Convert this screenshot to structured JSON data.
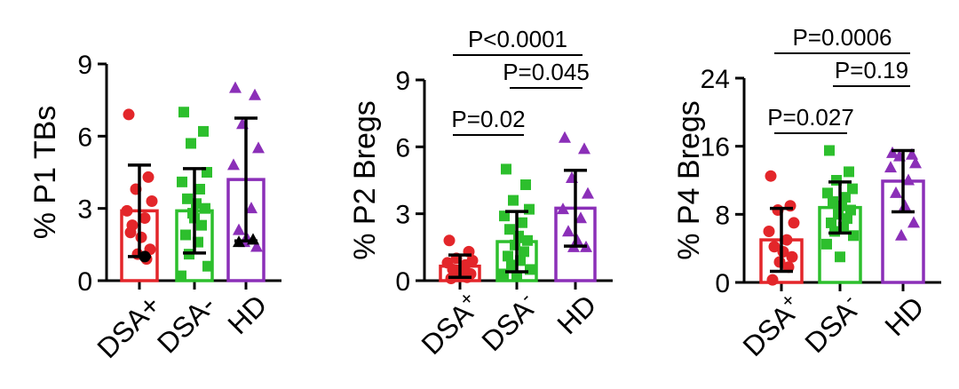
{
  "chart_data": [
    {
      "type": "bar",
      "ylabel": "% P1 TBs",
      "ylim": [
        0,
        9
      ],
      "yticks": [
        "0",
        "3",
        "6",
        "9"
      ],
      "tickvals": [
        0,
        3,
        6,
        9
      ],
      "categories": [
        {
          "main": "DSA+",
          "sup": ""
        },
        {
          "main": "DSA-",
          "sup": ""
        },
        {
          "main": "HD",
          "sup": ""
        }
      ],
      "bars": [
        {
          "mean": 2.9,
          "sd": 1.9,
          "color": "#e3262a",
          "marker": "circle",
          "points": [
            6.9,
            4.3,
            3.8,
            3.3,
            2.9,
            2.6,
            2.3,
            1.8,
            1.3,
            1.1,
            0.9,
            2.0
          ]
        },
        {
          "mean": 2.9,
          "sd": 1.75,
          "color": "#2dbf2d",
          "marker": "square",
          "points": [
            7.0,
            6.2,
            5.7,
            4.5,
            4.1,
            3.8,
            3.4,
            3.2,
            3.0,
            2.8,
            2.3,
            1.9,
            1.6,
            1.1,
            0.6,
            0.2,
            2.6
          ]
        },
        {
          "mean": 4.2,
          "sd": 2.55,
          "color": "#8b2fb8",
          "marker": "triangle",
          "points": [
            8.0,
            7.7,
            6.5,
            5.5,
            4.8,
            3.0,
            2.1,
            1.7,
            1.4,
            1.6
          ]
        }
      ],
      "black_points": [
        {
          "category": 0,
          "value": 1.0
        },
        {
          "category": 2,
          "value": 1.6
        },
        {
          "category": 2,
          "value": 1.7
        }
      ],
      "comparisons": []
    },
    {
      "type": "bar",
      "ylabel": "% P2 Bregs",
      "ylim": [
        0,
        9
      ],
      "yticks": [
        "0",
        "3",
        "6",
        "9"
      ],
      "tickvals": [
        0,
        3,
        6,
        9
      ],
      "categories": [
        {
          "main": "DSA",
          "sup": "+"
        },
        {
          "main": "DSA",
          "sup": "-"
        },
        {
          "main": "HD",
          "sup": ""
        }
      ],
      "bars": [
        {
          "mean": 0.65,
          "sd": 0.5,
          "color": "#e3262a",
          "marker": "circle",
          "points": [
            1.8,
            1.3,
            1.0,
            0.9,
            0.8,
            0.7,
            0.5,
            0.4,
            0.3,
            0.2,
            0.15,
            0.1
          ]
        },
        {
          "mean": 1.75,
          "sd": 1.35,
          "color": "#2dbf2d",
          "marker": "square",
          "points": [
            5.0,
            4.3,
            3.6,
            3.2,
            2.9,
            2.6,
            2.3,
            2.0,
            1.8,
            1.6,
            1.3,
            1.1,
            0.9,
            0.7,
            0.5,
            0.3,
            0.2
          ]
        },
        {
          "mean": 3.25,
          "sd": 1.7,
          "color": "#8b2fb8",
          "marker": "triangle",
          "points": [
            6.4,
            5.9,
            4.6,
            3.9,
            3.2,
            2.8,
            2.2,
            1.8,
            1.5,
            1.5
          ]
        }
      ],
      "black_points": [],
      "comparisons": [
        {
          "label": "P=0.02",
          "from": 0,
          "to": 1,
          "level": 1
        },
        {
          "label": "P=0.045",
          "from": 1,
          "to": 2,
          "level": 2
        },
        {
          "label": "P<0.0001",
          "from": 0,
          "to": 2,
          "level": 3
        }
      ]
    },
    {
      "type": "bar",
      "ylabel": "% P4 Bregs",
      "ylim": [
        0,
        24
      ],
      "yticks": [
        "0",
        "8",
        "16",
        "24"
      ],
      "tickvals": [
        0,
        8,
        16,
        24
      ],
      "categories": [
        {
          "main": "DSA",
          "sup": "+"
        },
        {
          "main": "DSA",
          "sup": "-"
        },
        {
          "main": "HD",
          "sup": ""
        }
      ],
      "bars": [
        {
          "mean": 5.0,
          "sd": 3.7,
          "color": "#e3262a",
          "marker": "circle",
          "points": [
            12.5,
            9.0,
            8.5,
            7.0,
            6.0,
            5.0,
            4.2,
            3.6,
            3.0,
            2.4,
            1.8,
            0.3
          ]
        },
        {
          "mean": 8.8,
          "sd": 3.0,
          "color": "#2dbf2d",
          "marker": "square",
          "points": [
            15.5,
            13.0,
            12.0,
            11.0,
            10.5,
            10.0,
            9.5,
            9.0,
            8.5,
            8.0,
            7.5,
            7.0,
            6.5,
            6.0,
            5.5,
            4.5,
            3.0
          ]
        },
        {
          "mean": 11.9,
          "sd": 3.6,
          "color": "#8b2fb8",
          "marker": "triangle",
          "points": [
            15.2,
            15.0,
            14.8,
            14.0,
            13.5,
            12.0,
            10.5,
            9.0,
            7.0,
            5.5
          ]
        }
      ],
      "black_points": [],
      "comparisons": [
        {
          "label": "P=0.027",
          "from": 0,
          "to": 1,
          "level": 1
        },
        {
          "label": "P=0.19",
          "from": 1,
          "to": 2,
          "level": 2
        },
        {
          "label": "P=0.0006",
          "from": 0,
          "to": 2,
          "level": 3
        }
      ]
    }
  ]
}
